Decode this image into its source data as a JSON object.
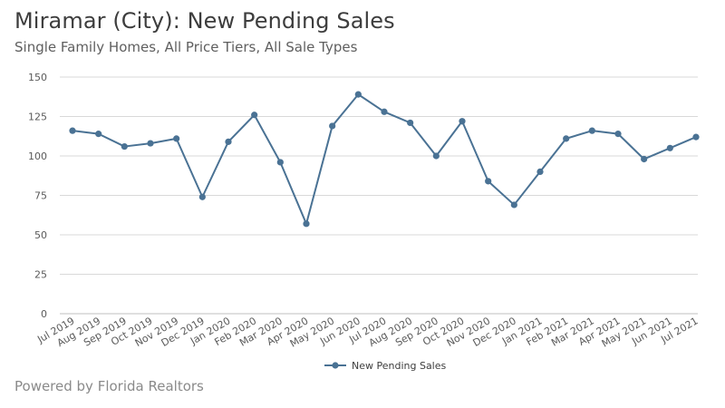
{
  "header": {
    "title": "Miramar (City): New Pending Sales",
    "subtitle": "Single Family Homes, All Price Tiers, All Sale Types"
  },
  "footer": {
    "text": "Powered by Florida Realtors"
  },
  "colors": {
    "series": "#4a7294",
    "grid": "#d9d9d9",
    "axis": "#bfbfbf"
  },
  "chart_data": {
    "type": "line",
    "title": "Miramar (City): New Pending Sales",
    "subtitle": "Single Family Homes, All Price Tiers, All Sale Types",
    "xlabel": "",
    "ylabel": "",
    "ylim": [
      0,
      150
    ],
    "yticks": [
      0,
      25,
      50,
      75,
      100,
      125,
      150
    ],
    "grid": true,
    "legend_position": "bottom",
    "categories": [
      "Jul 2019",
      "Aug 2019",
      "Sep 2019",
      "Oct 2019",
      "Nov 2019",
      "Dec 2019",
      "Jan 2020",
      "Feb 2020",
      "Mar 2020",
      "Apr 2020",
      "May 2020",
      "Jun 2020",
      "Jul 2020",
      "Aug 2020",
      "Sep 2020",
      "Oct 2020",
      "Nov 2020",
      "Dec 2020",
      "Jan 2021",
      "Feb 2021",
      "Mar 2021",
      "Apr 2021",
      "May 2021",
      "Jun 2021",
      "Jul 2021"
    ],
    "series": [
      {
        "name": "New Pending Sales",
        "values": [
          116,
          114,
          106,
          108,
          111,
          74,
          109,
          126,
          96,
          57,
          119,
          139,
          128,
          121,
          100,
          122,
          84,
          69,
          90,
          111,
          116,
          114,
          98,
          105,
          112
        ]
      }
    ]
  }
}
